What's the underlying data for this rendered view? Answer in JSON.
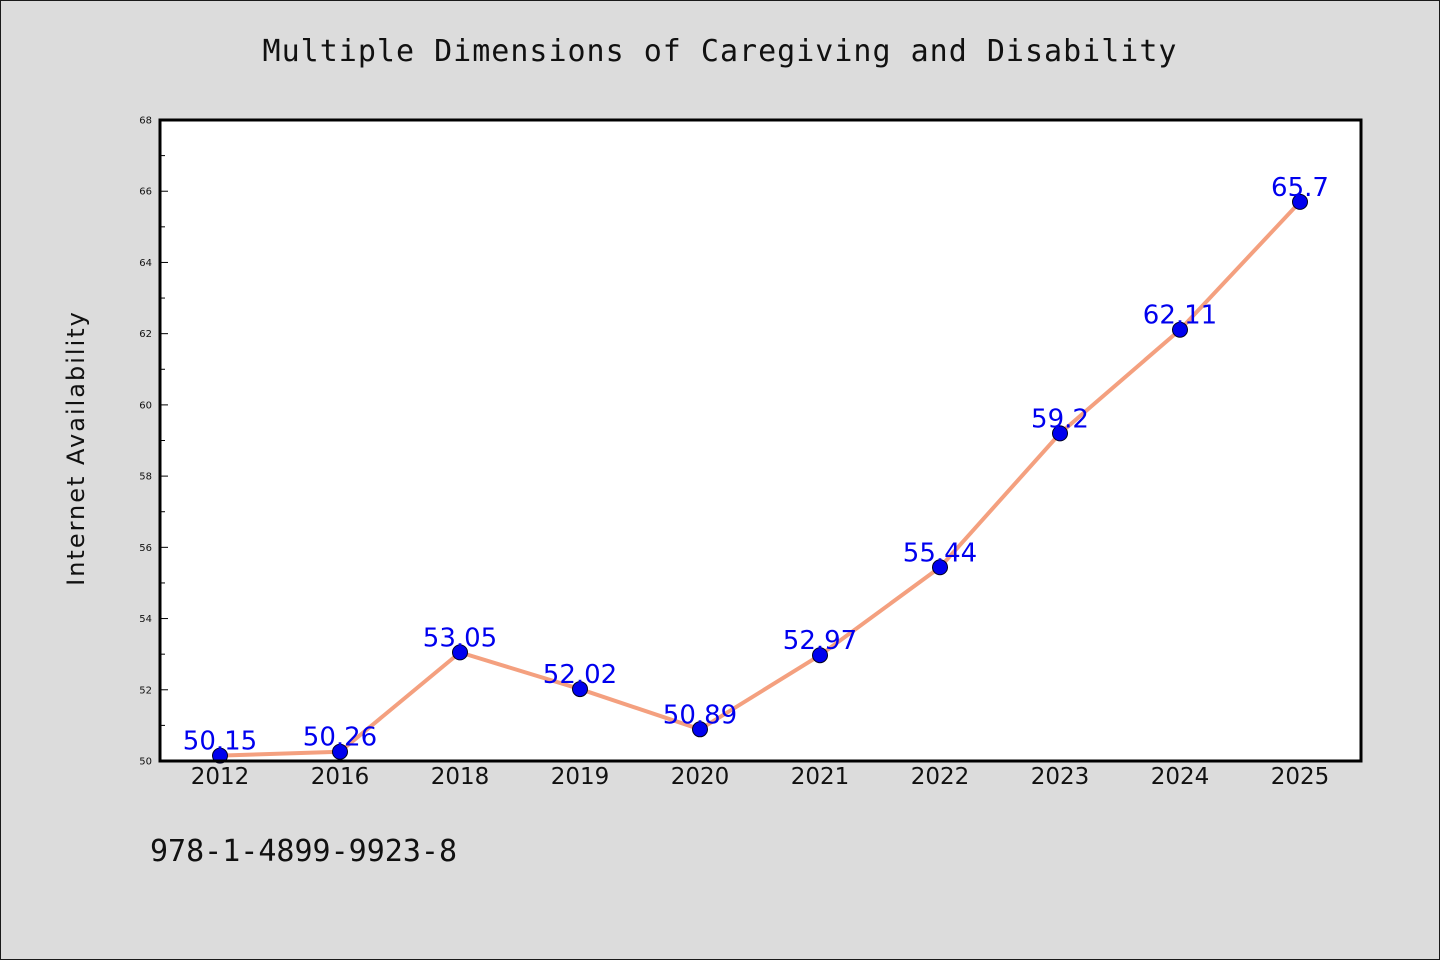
{
  "chart_data": {
    "type": "line",
    "title": "Multiple Dimensions of Caregiving and Disability",
    "xlabel": "",
    "ylabel": "Internet Availability",
    "categories": [
      "2012",
      "2016",
      "2018",
      "2019",
      "2020",
      "2021",
      "2022",
      "2023",
      "2024",
      "2025"
    ],
    "series": [
      {
        "values": [
          50.15,
          50.26,
          53.05,
          52.02,
          50.89,
          52.97,
          55.44,
          59.2,
          62.11,
          65.7
        ],
        "labels": [
          "50.15",
          "50.26",
          "53.05",
          "52.02",
          "50.89",
          "52.97",
          "55.44",
          "59.2",
          "62.11",
          "65.7"
        ],
        "line_color": "#f4a07f",
        "marker_color": "#0000ee"
      }
    ],
    "ylim": [
      50,
      68
    ],
    "y_ticks": [
      "50",
      "52",
      "54",
      "56",
      "58",
      "60",
      "62",
      "64",
      "66",
      "68"
    ],
    "grid": false,
    "label_color": "#0000ee"
  },
  "footer": {
    "isbn": "978-1-4899-9923-8"
  }
}
